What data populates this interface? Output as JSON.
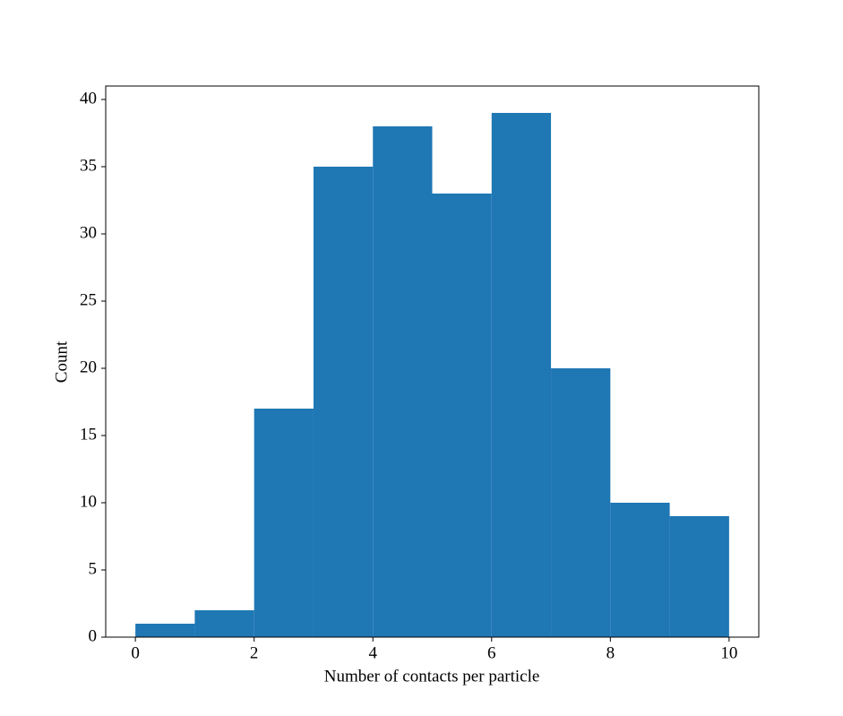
{
  "chart_data": {
    "type": "histogram",
    "xlabel": "Number of contacts per particle",
    "ylabel": "Count",
    "bins": [
      0,
      1,
      2,
      3,
      4,
      5,
      6,
      7,
      8,
      9,
      10
    ],
    "values": [
      1,
      2,
      17,
      35,
      38,
      33,
      39,
      20,
      10,
      9
    ],
    "color": "#1f77b4",
    "xlim": [
      -0.5,
      10.5
    ],
    "xticks": [
      0,
      2,
      4,
      6,
      8,
      10
    ],
    "ylim": [
      0,
      41
    ],
    "yticks": [
      0,
      5,
      10,
      15,
      20,
      25,
      30,
      35,
      40
    ]
  }
}
